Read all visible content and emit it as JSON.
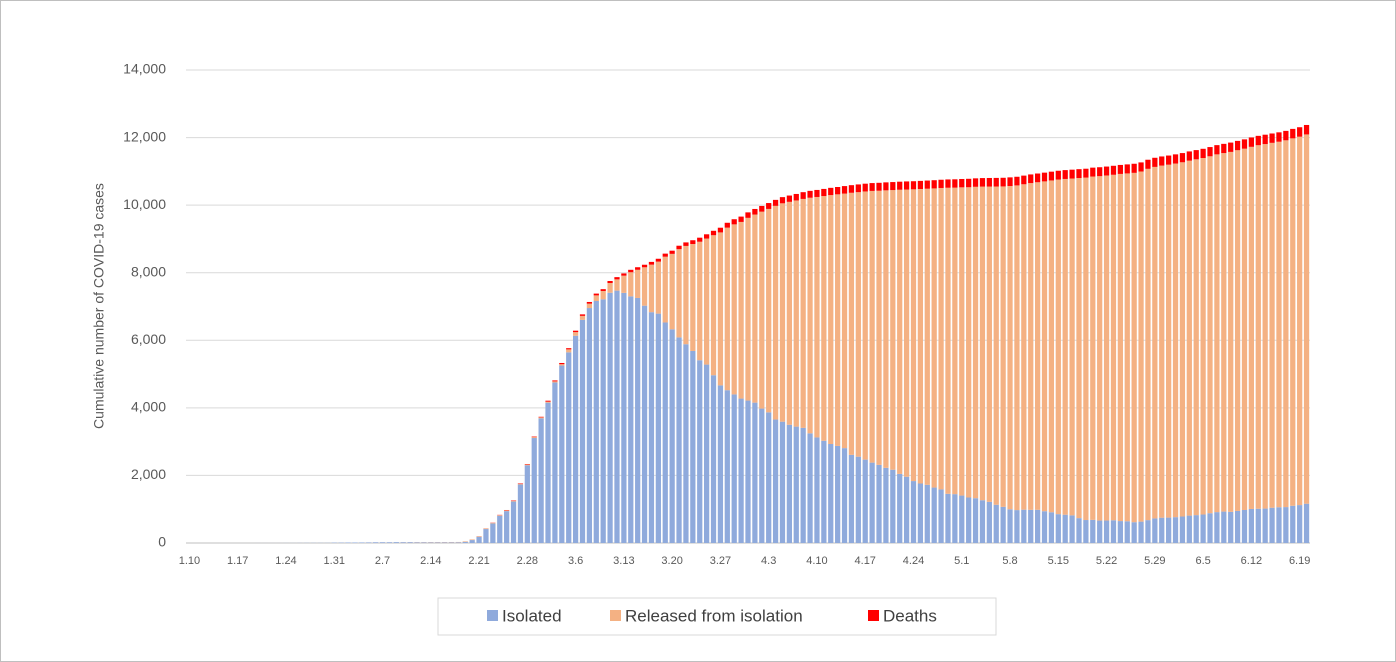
{
  "chart_data": {
    "type": "stacked_bar",
    "y_label": "Cumulative number of COVID-19 cases",
    "categories": [
      "1.10",
      null,
      null,
      null,
      null,
      null,
      null,
      "1.17",
      null,
      null,
      null,
      null,
      null,
      null,
      "1.24",
      null,
      null,
      null,
      null,
      null,
      null,
      "1.31",
      null,
      null,
      null,
      null,
      null,
      null,
      "2.7",
      null,
      null,
      null,
      null,
      null,
      null,
      "2.14",
      null,
      null,
      null,
      null,
      null,
      null,
      "2.21",
      null,
      null,
      null,
      null,
      null,
      null,
      "2.28",
      null,
      null,
      null,
      null,
      null,
      null,
      "3.6",
      null,
      null,
      null,
      null,
      null,
      null,
      "3.13",
      null,
      null,
      null,
      null,
      null,
      null,
      "3.20",
      null,
      null,
      null,
      null,
      null,
      null,
      "3.27",
      null,
      null,
      null,
      null,
      null,
      null,
      "4.3",
      null,
      null,
      null,
      null,
      null,
      null,
      "4.10",
      null,
      null,
      null,
      null,
      null,
      null,
      "4.17",
      null,
      null,
      null,
      null,
      null,
      null,
      "4.24",
      null,
      null,
      null,
      null,
      null,
      null,
      "5.1",
      null,
      null,
      null,
      null,
      null,
      null,
      "5.8",
      null,
      null,
      null,
      null,
      null,
      null,
      "5.15",
      null,
      null,
      null,
      null,
      null,
      null,
      "5.22",
      null,
      null,
      null,
      null,
      null,
      null,
      "5.29",
      null,
      null,
      null,
      null,
      null,
      null,
      "6.5",
      null,
      null,
      null,
      null,
      null,
      null,
      "6.12",
      null,
      null,
      null,
      null,
      null,
      null,
      "6.19",
      null
    ],
    "series": [
      {
        "name": "Isolated",
        "color": "#8faadc",
        "values": [
          0,
          0,
          0,
          0,
          0,
          0,
          0,
          0,
          0,
          0,
          1,
          1,
          1,
          1,
          2,
          2,
          3,
          4,
          4,
          4,
          4,
          11,
          12,
          15,
          15,
          16,
          18,
          22,
          23,
          23,
          26,
          24,
          25,
          21,
          21,
          19,
          19,
          20,
          20,
          21,
          35,
          87,
          185,
          413,
          578,
          807,
          944,
          1227,
          1731,
          2302,
          3107,
          3689,
          4154,
          4750,
          5252,
          5643,
          6134,
          6605,
          6954,
          7163,
          7212,
          7407,
          7470,
          7403,
          7300,
          7253,
          7024,
          6832,
          6789,
          6527,
          6325,
          6085,
          5884,
          5684,
          5410,
          5281,
          4966,
          4665,
          4523,
          4398,
          4275,
          4216,
          4155,
          3979,
          3867,
          3654,
          3591,
          3500,
          3445,
          3408,
          3246,
          3125,
          3026,
          2930,
          2873,
          2808,
          2609,
          2555,
          2468,
          2379,
          2313,
          2225,
          2169,
          2045,
          1961,
          1833,
          1761,
          1722,
          1641,
          1586,
          1456,
          1446,
          1404,
          1347,
          1326,
          1266,
          1218,
          1132,
          1070,
          998,
          974,
          986,
          982,
          983,
          941,
          910,
          854,
          837,
          818,
          736,
          680,
          685,
          664,
          665,
          673,
          649,
          644,
          616,
          633,
          677,
          727,
          749,
          752,
          765,
          784,
          811,
          825,
          843,
          882,
          914,
          930,
          922,
          949,
          977,
          1008,
          1014,
          1019,
          1044,
          1059,
          1063,
          1102,
          1122,
          1163
        ]
      },
      {
        "name": "Released from isolation",
        "color": "#f4b183",
        "values": [
          0,
          0,
          0,
          0,
          0,
          0,
          0,
          0,
          0,
          0,
          0,
          0,
          0,
          0,
          0,
          0,
          0,
          0,
          0,
          0,
          0,
          0,
          0,
          0,
          0,
          0,
          1,
          1,
          1,
          1,
          1,
          3,
          3,
          7,
          7,
          9,
          9,
          9,
          10,
          10,
          16,
          16,
          17,
          18,
          18,
          18,
          22,
          22,
          22,
          22,
          27,
          30,
          30,
          34,
          41,
          88,
          108,
          118,
          130,
          166,
          247,
          288,
          333,
          510,
          714,
          834,
          1137,
          1407,
          1540,
          1947,
          2233,
          2612,
          2909,
          3166,
          3507,
          3730,
          4144,
          4528,
          4811,
          5033,
          5228,
          5408,
          5567,
          5828,
          6021,
          6325,
          6463,
          6598,
          6694,
          6776,
          6973,
          7117,
          7243,
          7368,
          7447,
          7534,
          7757,
          7829,
          7937,
          8042,
          8114,
          8213,
          8277,
          8411,
          8501,
          8635,
          8717,
          8764,
          8854,
          8922,
          9059,
          9072,
          9123,
          9183,
          9217,
          9283,
          9332,
          9419,
          9484,
          9568,
          9610,
          9632,
          9671,
          9695,
          9762,
          9821,
          9904,
          9938,
          9970,
          10066,
          10135,
          10162,
          10194,
          10213,
          10226,
          10275,
          10295,
          10340,
          10363,
          10398,
          10405,
          10422,
          10446,
          10467,
          10485,
          10506,
          10531,
          10552,
          10564,
          10589,
          10611,
          10654,
          10677,
          10694,
          10718,
          10760,
          10789,
          10800,
          10818,
          10856,
          10875,
          10904,
          10930
        ]
      },
      {
        "name": "Deaths",
        "color": "#ff0000",
        "values": [
          0,
          0,
          0,
          0,
          0,
          0,
          0,
          0,
          0,
          0,
          0,
          0,
          0,
          0,
          0,
          0,
          0,
          0,
          0,
          0,
          0,
          0,
          0,
          0,
          0,
          0,
          0,
          0,
          0,
          0,
          0,
          0,
          0,
          0,
          0,
          0,
          0,
          0,
          0,
          0,
          0,
          1,
          2,
          2,
          6,
          8,
          11,
          12,
          13,
          13,
          16,
          17,
          28,
          28,
          35,
          35,
          42,
          44,
          50,
          53,
          54,
          60,
          66,
          66,
          72,
          75,
          75,
          81,
          84,
          91,
          94,
          102,
          104,
          111,
          120,
          126,
          131,
          139,
          144,
          152,
          158,
          162,
          165,
          169,
          174,
          177,
          183,
          186,
          192,
          200,
          204,
          208,
          211,
          214,
          217,
          222,
          225,
          229,
          230,
          232,
          234,
          236,
          237,
          238,
          240,
          240,
          240,
          242,
          243,
          244,
          246,
          247,
          247,
          250,
          250,
          252,
          254,
          255,
          256,
          256,
          256,
          256,
          256,
          258,
          259,
          260,
          260,
          262,
          262,
          263,
          263,
          263,
          264,
          264,
          266,
          266,
          267,
          269,
          269,
          269,
          270,
          270,
          270,
          271,
          272,
          273,
          273,
          273,
          273,
          273,
          273,
          276,
          276,
          276,
          277,
          277,
          277,
          277,
          278,
          279,
          280,
          280,
          280
        ]
      }
    ],
    "ylim": [
      0,
      14000
    ],
    "yticks": [
      0,
      {
        "value": 2000,
        "label": "2,000"
      },
      {
        "value": 4000,
        "label": "4,000"
      },
      {
        "value": 6000,
        "label": "6,000"
      },
      {
        "value": 8000,
        "label": "8,000"
      },
      {
        "value": 10000,
        "label": "10,000"
      },
      {
        "value": 12000,
        "label": "12,000"
      },
      {
        "value": 14000,
        "label": "14,000"
      }
    ],
    "grid": true,
    "legend": "bottom"
  }
}
